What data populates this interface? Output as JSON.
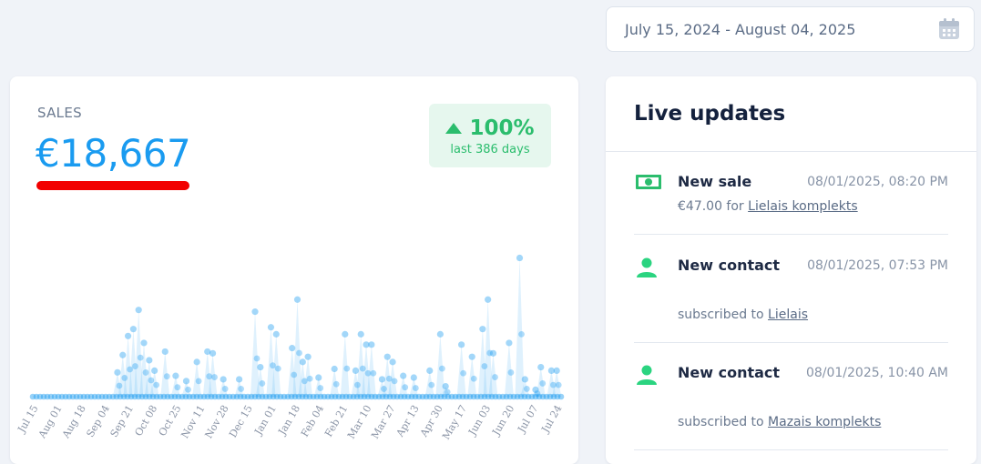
{
  "date_range": {
    "value": "July 15, 2024 - August 04, 2025",
    "icon": "calendar-icon"
  },
  "sales": {
    "label": "SALES",
    "value": "€18,667",
    "trend": {
      "percent": "100%",
      "period": "last 386 days",
      "direction": "up",
      "color": "#2bbd6d"
    },
    "accent_color": "#1a9bf0"
  },
  "chart_data": {
    "type": "line",
    "title": "",
    "xlabel": "",
    "ylabel": "",
    "x_ticks": [
      "Jul 15",
      "Aug 01",
      "Aug 18",
      "Sep 04",
      "Sep 21",
      "Oct 08",
      "Oct 25",
      "Nov 11",
      "Nov 28",
      "Dec 15",
      "Jan 01",
      "Jan 18",
      "Feb 04",
      "Feb 21",
      "Mar 10",
      "Mar 27",
      "Apr 13",
      "Apr 30",
      "May 17",
      "Jun 03",
      "Jun 20",
      "Jul 07",
      "Jul 24"
    ],
    "series": [
      {
        "values": [
          0,
          0,
          0,
          0,
          0,
          0,
          0,
          0,
          0,
          0,
          0,
          0,
          0,
          0,
          0,
          0,
          0,
          0,
          0,
          0,
          0,
          0,
          0,
          0,
          0,
          0,
          0,
          0,
          0,
          0,
          0,
          0,
          0,
          0,
          0,
          0,
          0,
          0,
          0,
          0,
          0,
          0,
          0,
          0,
          0,
          0,
          0,
          0,
          0,
          0,
          0,
          0,
          0,
          0,
          0,
          0,
          0,
          0,
          0,
          0,
          0,
          0,
          0,
          0,
          0,
          0,
          0,
          0,
          0,
          0,
          0,
          0,
          0,
          0,
          0,
          0,
          0,
          0,
          0,
          0,
          0,
          0,
          0,
          0,
          0,
          0,
          0,
          0,
          0,
          0,
          0,
          0,
          0,
          0,
          0,
          0,
          0,
          0,
          0,
          0,
          0,
          0,
          0,
          0,
          0,
          0,
          0,
          0,
          0,
          0,
          0,
          0,
          0,
          0,
          0,
          0,
          0,
          0,
          0,
          0,
          0,
          0,
          0,
          0,
          0,
          0,
          0,
          0,
          0,
          0,
          0,
          0,
          0,
          0,
          0,
          0,
          0,
          0,
          0,
          0,
          0,
          0,
          0,
          0,
          0,
          0,
          0,
          0,
          0,
          0,
          0,
          0,
          0,
          0,
          0,
          0,
          0,
          0,
          0,
          0,
          0,
          0,
          0,
          0,
          0,
          0,
          0,
          0,
          0,
          0,
          0,
          0,
          0,
          0,
          0,
          0,
          0,
          0,
          0,
          0,
          0,
          0,
          0,
          0,
          0,
          0,
          0,
          0,
          0,
          0,
          0,
          0,
          0,
          0,
          0,
          0,
          0,
          0,
          0,
          0,
          0,
          0,
          0,
          0,
          0,
          0,
          0,
          0,
          0,
          0,
          0,
          0,
          0,
          0,
          0,
          0,
          0,
          0,
          0,
          0,
          0,
          0,
          0,
          0,
          0,
          0,
          0,
          0,
          0,
          0,
          0,
          0,
          0,
          0,
          0,
          0,
          0,
          0,
          0,
          0,
          0,
          0,
          0,
          0,
          0,
          0,
          0,
          0,
          0,
          0,
          0,
          0,
          0,
          0,
          0,
          0,
          0,
          0,
          0,
          0,
          0,
          0,
          0,
          0,
          0,
          0,
          0,
          0,
          0,
          0,
          0,
          0,
          0,
          0,
          0,
          0,
          0,
          0,
          0,
          0,
          0,
          0,
          0,
          0,
          0,
          0,
          0,
          0,
          0,
          0,
          0,
          0,
          0,
          0,
          0,
          0,
          0,
          0,
          0,
          0,
          0,
          0,
          0,
          0,
          0,
          0,
          0,
          0,
          0,
          0,
          0,
          0,
          0,
          0,
          0,
          0,
          0,
          0,
          0,
          0,
          0,
          0,
          0,
          0,
          0,
          0,
          0,
          0,
          0,
          0,
          0,
          0,
          0,
          0,
          0,
          0,
          0,
          0,
          0,
          0,
          0,
          0,
          0,
          0,
          0,
          0,
          0,
          0,
          0,
          0,
          0,
          0,
          0,
          0,
          0,
          0,
          0,
          0,
          0,
          0,
          0,
          0,
          0,
          0,
          0,
          0,
          0,
          0,
          0,
          0,
          0,
          0,
          0,
          0,
          0,
          0,
          0,
          0,
          0,
          0,
          0,
          0,
          0,
          0,
          0,
          0,
          0,
          0,
          0,
          0,
          0,
          0
        ]
      }
    ],
    "peaks": [
      [
        0.16,
        28
      ],
      [
        0.17,
        48
      ],
      [
        0.18,
        70
      ],
      [
        0.19,
        78
      ],
      [
        0.2,
        100
      ],
      [
        0.21,
        62
      ],
      [
        0.22,
        42
      ],
      [
        0.23,
        30
      ],
      [
        0.25,
        52
      ],
      [
        0.27,
        24
      ],
      [
        0.29,
        18
      ],
      [
        0.31,
        40
      ],
      [
        0.33,
        52
      ],
      [
        0.34,
        50
      ],
      [
        0.36,
        20
      ],
      [
        0.39,
        20
      ],
      [
        0.42,
        98
      ],
      [
        0.43,
        34
      ],
      [
        0.45,
        80
      ],
      [
        0.46,
        72
      ],
      [
        0.49,
        56
      ],
      [
        0.5,
        112
      ],
      [
        0.51,
        40
      ],
      [
        0.52,
        46
      ],
      [
        0.54,
        22
      ],
      [
        0.57,
        32
      ],
      [
        0.59,
        72
      ],
      [
        0.61,
        30
      ],
      [
        0.62,
        72
      ],
      [
        0.63,
        60
      ],
      [
        0.64,
        60
      ],
      [
        0.66,
        20
      ],
      [
        0.67,
        46
      ],
      [
        0.68,
        40
      ],
      [
        0.7,
        24
      ],
      [
        0.72,
        22
      ],
      [
        0.75,
        30
      ],
      [
        0.77,
        72
      ],
      [
        0.78,
        12
      ],
      [
        0.81,
        60
      ],
      [
        0.83,
        46
      ],
      [
        0.85,
        78
      ],
      [
        0.86,
        112
      ],
      [
        0.87,
        50
      ],
      [
        0.9,
        62
      ],
      [
        0.92,
        160
      ],
      [
        0.93,
        20
      ],
      [
        0.95,
        8
      ],
      [
        0.96,
        34
      ],
      [
        0.98,
        30
      ],
      [
        0.99,
        30
      ]
    ],
    "grid": false,
    "legend": "none",
    "color": "#1a9bf0"
  },
  "live": {
    "title": "Live updates",
    "items": [
      {
        "title": "New sale",
        "time": "08/01/2025, 08:20 PM",
        "desc_prefix": "€47.00 for ",
        "link": "Lielais komplekts",
        "icon": "money-icon"
      },
      {
        "title": "New contact",
        "time": "08/01/2025, 07:53 PM",
        "desc_prefix": "subscribed to ",
        "link": "Lielais",
        "icon": "user-icon"
      },
      {
        "title": "New contact",
        "time": "08/01/2025, 10:40 AM",
        "desc_prefix": "subscribed to ",
        "link": "Mazais komplekts",
        "icon": "user-icon"
      }
    ]
  }
}
